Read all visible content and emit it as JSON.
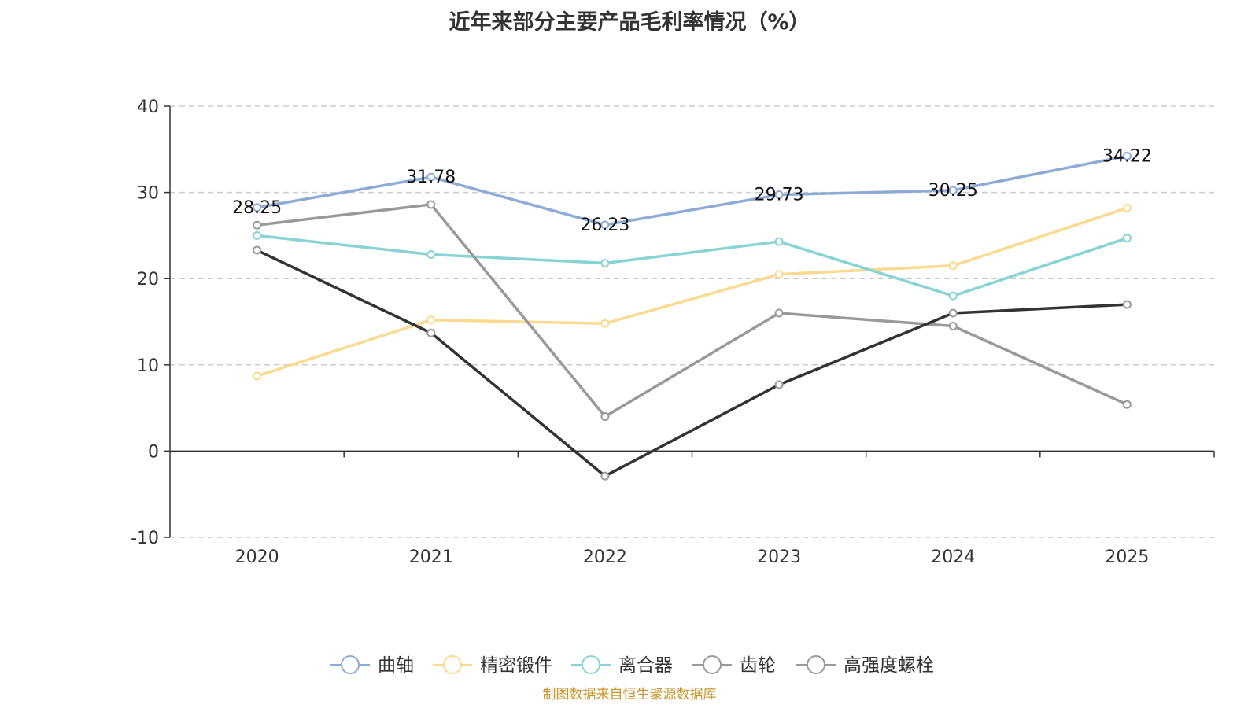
{
  "chart_data": {
    "type": "line",
    "title": "近年来部分主要产品毛利率情况（%）",
    "x": [
      "2020",
      "2021",
      "2022",
      "2023",
      "2024",
      "2025"
    ],
    "ylim": [
      -10,
      40
    ],
    "yticks": [
      -10,
      0,
      10,
      20,
      30,
      40
    ],
    "grid": true,
    "legend_position": "bottom",
    "series": [
      {
        "name": "曲轴",
        "color": "#8eabd8",
        "values": [
          28.25,
          31.78,
          26.23,
          29.73,
          30.25,
          34.22
        ],
        "labels": [
          "28.25",
          "31.78",
          "26.23",
          "29.73",
          "30.25",
          "34.22"
        ]
      },
      {
        "name": "精密锻件",
        "color": "#fbd98f",
        "values": [
          8.7,
          15.2,
          14.8,
          20.5,
          21.5,
          28.2
        ]
      },
      {
        "name": "离合器",
        "color": "#88d4d4",
        "values": [
          25.0,
          22.8,
          21.8,
          24.3,
          18.0,
          24.7
        ]
      },
      {
        "name": "齿轮",
        "color": "#999999",
        "values": [
          26.2,
          28.6,
          4.0,
          16.0,
          14.5,
          5.4
        ]
      },
      {
        "name": "高强度螺栓",
        "color": "#333333",
        "legend_color": "#999999",
        "values": [
          23.3,
          13.7,
          -2.9,
          7.7,
          16.0,
          17.0
        ]
      }
    ]
  },
  "source_note": "制图数据来自恒生聚源数据库"
}
